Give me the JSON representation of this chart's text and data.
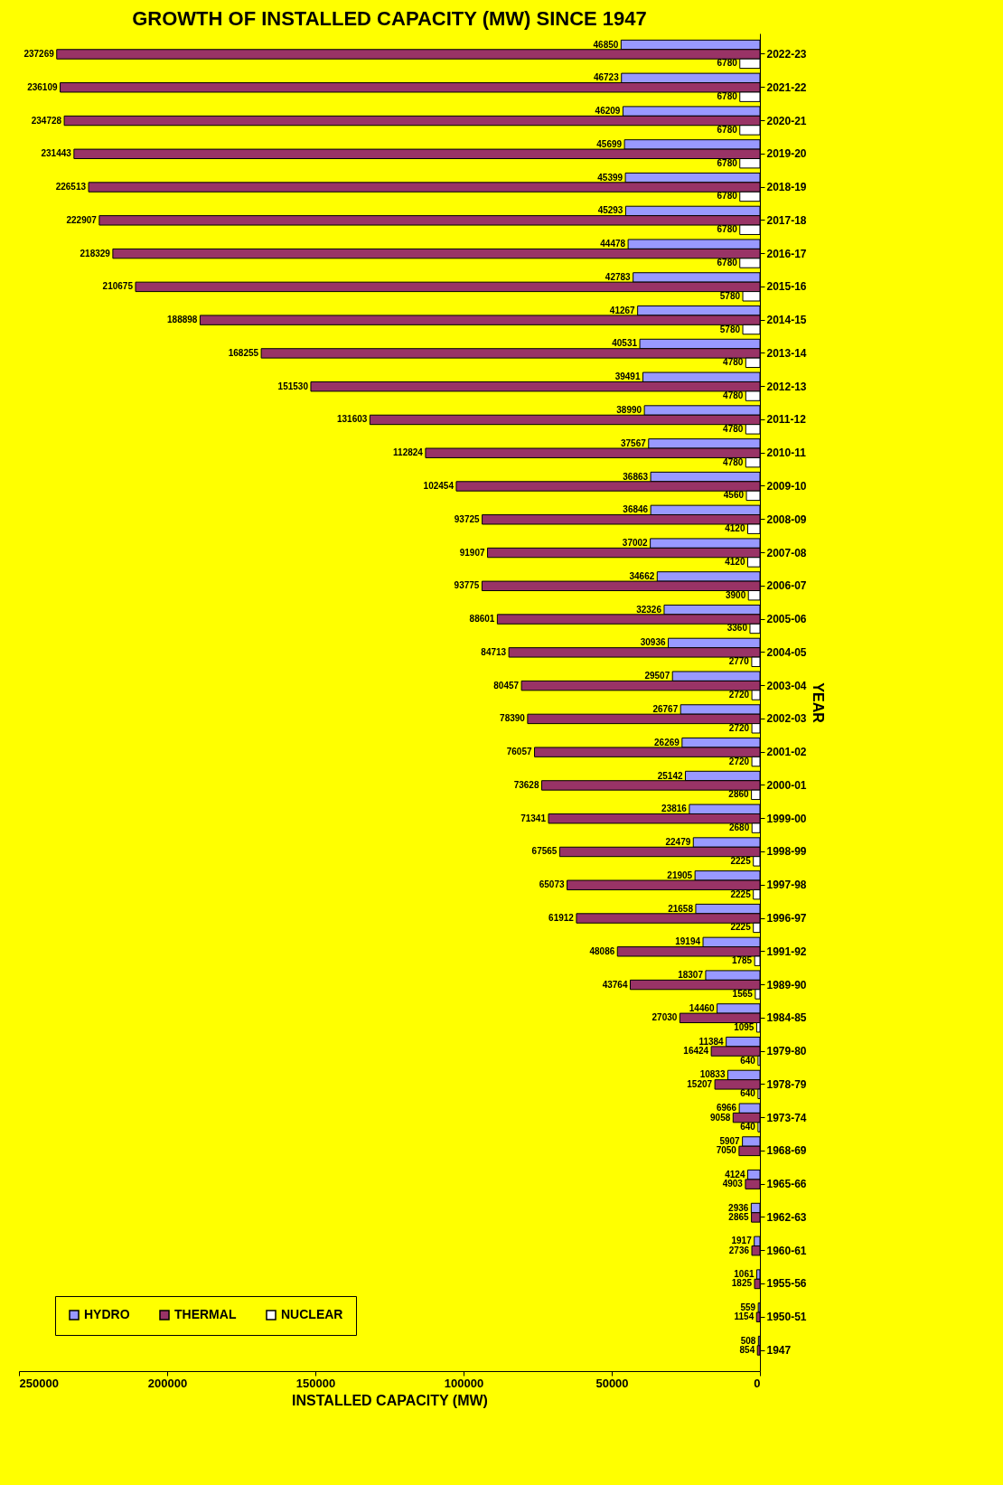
{
  "chart_data": {
    "type": "bar",
    "orientation": "horizontal",
    "title": "GROWTH OF INSTALLED CAPACITY (MW) SINCE 1947",
    "xlabel": "INSTALLED CAPACITY (MW)",
    "ylabel": "YEAR",
    "categories": [
      "2022-23",
      "2021-22",
      "2020-21",
      "2019-20",
      "2018-19",
      "2017-18",
      "2016-17",
      "2015-16",
      "2014-15",
      "2013-14",
      "2012-13",
      "2011-12",
      "2010-11",
      "2009-10",
      "2008-09",
      "2007-08",
      "2006-07",
      "2005-06",
      "2004-05",
      "2003-04",
      "2002-03",
      "2001-02",
      "2000-01",
      "1999-00",
      "1998-99",
      "1997-98",
      "1996-97",
      "1991-92",
      "1989-90",
      "1984-85",
      "1979-80",
      "1978-79",
      "1973-74",
      "1968-69",
      "1965-66",
      "1962-63",
      "1960-61",
      "1955-56",
      "1950-51",
      "1947"
    ],
    "series": [
      {
        "name": "HYDRO",
        "color": "#9999ff",
        "values": [
          46850,
          46723,
          46209,
          45699,
          45399,
          45293,
          44478,
          42783,
          41267,
          40531,
          39491,
          38990,
          37567,
          36863,
          36846,
          37002,
          34662,
          32326,
          30936,
          29507,
          26767,
          26269,
          25142,
          23816,
          22479,
          21905,
          21658,
          19194,
          18307,
          14460,
          11384,
          10833,
          6966,
          5907,
          4124,
          2936,
          1917,
          1061,
          559,
          508
        ]
      },
      {
        "name": "THERMAL",
        "color": "#993366",
        "values": [
          237269,
          236109,
          234728,
          231443,
          226513,
          222907,
          218329,
          210675,
          188898,
          168255,
          151530,
          131603,
          112824,
          102454,
          93725,
          91907,
          93775,
          88601,
          84713,
          80457,
          78390,
          76057,
          73628,
          71341,
          67565,
          65073,
          61912,
          48086,
          43764,
          27030,
          16424,
          15207,
          9058,
          7050,
          4903,
          2865,
          2736,
          1825,
          1154,
          854
        ]
      },
      {
        "name": "NUCLEAR",
        "color": "#ffffff",
        "values": [
          6780,
          6780,
          6780,
          6780,
          6780,
          6780,
          6780,
          5780,
          5780,
          4780,
          4780,
          4780,
          4780,
          4560,
          4120,
          4120,
          3900,
          3360,
          2770,
          2720,
          2720,
          2720,
          2860,
          2680,
          2225,
          2225,
          2225,
          1785,
          1565,
          1095,
          640,
          640,
          640,
          null,
          null,
          null,
          null,
          null,
          null,
          null
        ]
      }
    ],
    "xlim": [
      250000,
      0
    ],
    "xticks": [
      0,
      50000,
      100000,
      150000,
      200000,
      250000
    ],
    "data_labels": true,
    "grid": false,
    "legend": "bottom left"
  }
}
